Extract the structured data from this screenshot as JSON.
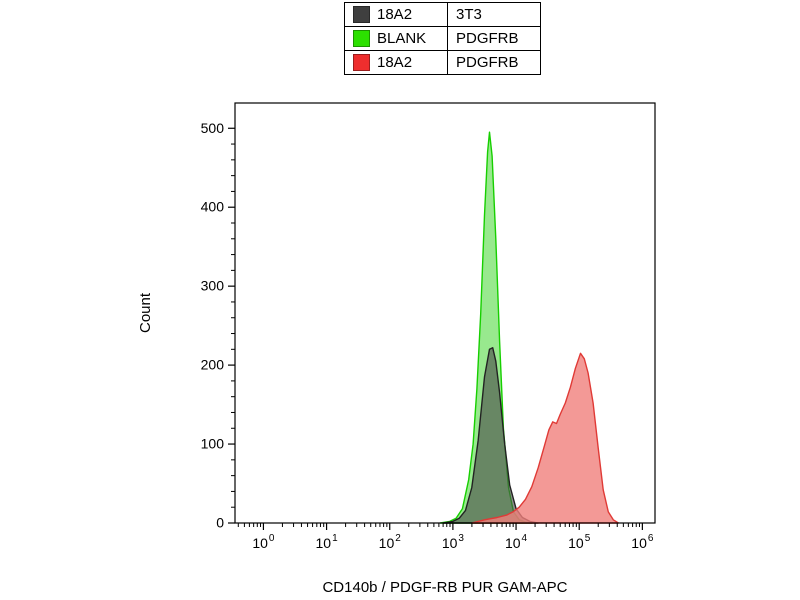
{
  "legend": {
    "rows": [
      {
        "label": "18A2",
        "value": "3T3",
        "color": "#3f3f3f"
      },
      {
        "label": "BLANK",
        "value": "PDGFRB",
        "color": "#2ce000"
      },
      {
        "label": "18A2",
        "value": "PDGFRB",
        "color": "#ee2e2e"
      }
    ]
  },
  "chart_data": {
    "type": "area",
    "subtype": "flow-cytometry-histogram",
    "title": "",
    "xlabel": "CD140b / PDGF-RB PUR GAM-APC",
    "ylabel": "Count",
    "x_scale": "log10",
    "x_log_range": [
      -0.45,
      6.2
    ],
    "x_decades": [
      0,
      1,
      2,
      3,
      4,
      5,
      6
    ],
    "ylim": [
      0,
      500
    ],
    "y_ticks": [
      0,
      100,
      200,
      300,
      400,
      500
    ],
    "y_minor_step": 20,
    "y_display_max": 532,
    "grid": false,
    "legend_position": "top-center",
    "series": [
      {
        "name": "BLANK / PDGFRB",
        "stroke": "#17cf00",
        "fill": "#86e57a",
        "fill_opacity": 0.85,
        "logx": [
          2.8,
          2.95,
          3.05,
          3.15,
          3.25,
          3.32,
          3.38,
          3.44,
          3.5,
          3.55,
          3.58,
          3.62,
          3.68,
          3.74,
          3.8,
          3.88,
          3.96,
          4.05,
          4.15,
          4.25
        ],
        "counts": [
          0,
          2,
          6,
          18,
          55,
          100,
          170,
          265,
          390,
          470,
          495,
          465,
          360,
          230,
          120,
          45,
          14,
          4,
          1,
          0
        ]
      },
      {
        "name": "18A2 / 3T3",
        "stroke": "#222222",
        "fill": "#4a4a4a",
        "fill_opacity": 0.62,
        "logx": [
          2.85,
          3.0,
          3.1,
          3.2,
          3.3,
          3.4,
          3.5,
          3.58,
          3.63,
          3.68,
          3.74,
          3.82,
          3.9,
          4.0,
          4.1,
          4.22,
          4.35
        ],
        "counts": [
          0,
          2,
          6,
          16,
          45,
          105,
          185,
          220,
          222,
          205,
          165,
          100,
          48,
          18,
          7,
          2,
          0
        ]
      },
      {
        "name": "18A2 / PDGFRB",
        "stroke": "#e03a36",
        "fill": "#f07f7c",
        "fill_opacity": 0.8,
        "logx": [
          3.3,
          3.5,
          3.7,
          3.85,
          3.95,
          4.05,
          4.15,
          4.25,
          4.35,
          4.45,
          4.52,
          4.58,
          4.64,
          4.7,
          4.78,
          4.86,
          4.94,
          5.02,
          5.08,
          5.14,
          5.22,
          5.3,
          5.38,
          5.46,
          5.54,
          5.62
        ],
        "counts": [
          0,
          4,
          7,
          10,
          14,
          20,
          30,
          46,
          70,
          98,
          118,
          128,
          126,
          138,
          152,
          172,
          196,
          215,
          208,
          190,
          152,
          95,
          42,
          14,
          4,
          0
        ]
      }
    ]
  }
}
